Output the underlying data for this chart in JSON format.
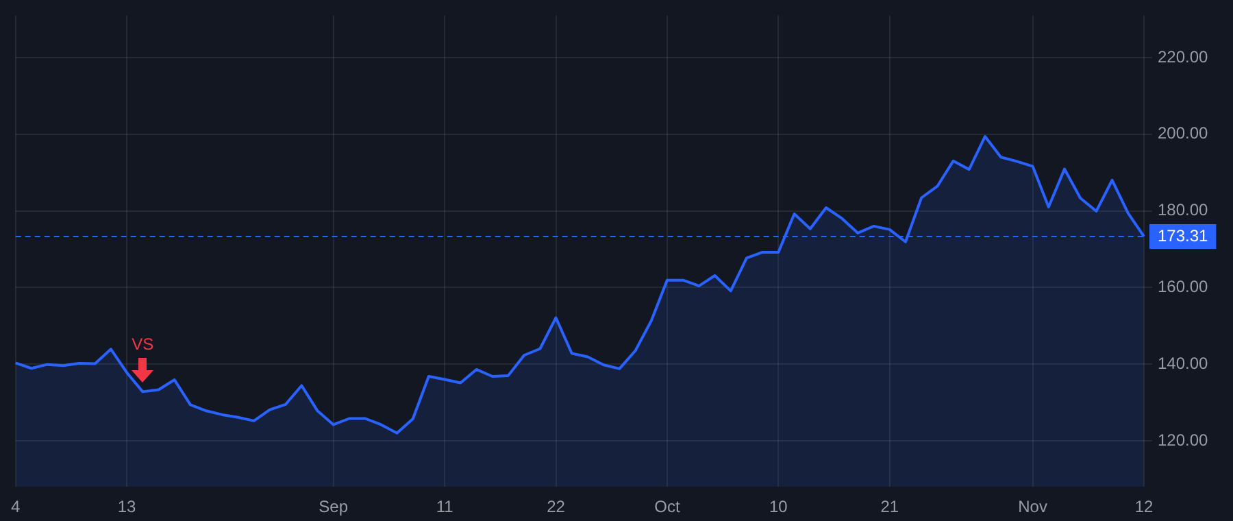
{
  "chart_data": {
    "type": "area",
    "categories": [
      "4",
      null,
      null,
      null,
      null,
      null,
      null,
      "13",
      null,
      null,
      null,
      null,
      null,
      null,
      null,
      null,
      null,
      null,
      null,
      null,
      "Sep",
      null,
      null,
      null,
      null,
      null,
      null,
      "11",
      null,
      null,
      null,
      null,
      null,
      null,
      "22",
      null,
      null,
      null,
      null,
      null,
      null,
      "Oct",
      null,
      null,
      null,
      null,
      null,
      null,
      "10",
      null,
      null,
      null,
      null,
      null,
      null,
      "21",
      null,
      null,
      null,
      null,
      null,
      null,
      null,
      null,
      "Nov",
      null,
      null,
      null,
      null,
      null,
      null,
      "12"
    ],
    "series": [
      {
        "color": "#2962ff",
        "values": [
          140.3,
          138.9,
          139.9,
          139.6,
          140.2,
          140.1,
          143.9,
          137.8,
          132.8,
          133.3,
          135.9,
          129.4,
          127.8,
          126.8,
          126.1,
          125.2,
          128.1,
          129.5,
          134.4,
          127.8,
          124.2,
          125.8,
          125.8,
          124.2,
          122.0,
          125.7,
          136.8,
          136.0,
          135.1,
          138.6,
          136.8,
          137.0,
          142.3,
          144.0,
          152.1,
          142.8,
          141.9,
          139.8,
          138.8,
          143.5,
          151.3,
          161.9,
          161.9,
          160.4,
          163.1,
          159.1,
          167.7,
          169.2,
          169.2,
          179.2,
          175.3,
          180.8,
          178.0,
          174.2,
          176.0,
          175.1,
          171.9,
          183.4,
          186.4,
          193.0,
          190.8,
          199.4,
          194.0,
          192.9,
          191.6,
          181.0,
          190.9,
          183.3,
          179.9,
          188.0,
          179.4,
          173.31
        ]
      }
    ],
    "ylim": [
      108,
      231
    ],
    "yticks": [
      {
        "value": 120,
        "label": "120.00"
      },
      {
        "value": 140,
        "label": "140.00"
      },
      {
        "value": 160,
        "label": "160.00"
      },
      {
        "value": 180,
        "label": "180.00"
      },
      {
        "value": 200,
        "label": "200.00"
      },
      {
        "value": 220,
        "label": "220.00"
      }
    ],
    "ref_lines": [
      {
        "axis": "y",
        "value": 173.31,
        "label": "173.31",
        "color": "#2962ff",
        "line_style": "dashed"
      }
    ],
    "annotations": [
      "VS"
    ],
    "grid": true,
    "legend": false,
    "marker": "none",
    "line_style": "solid"
  }
}
